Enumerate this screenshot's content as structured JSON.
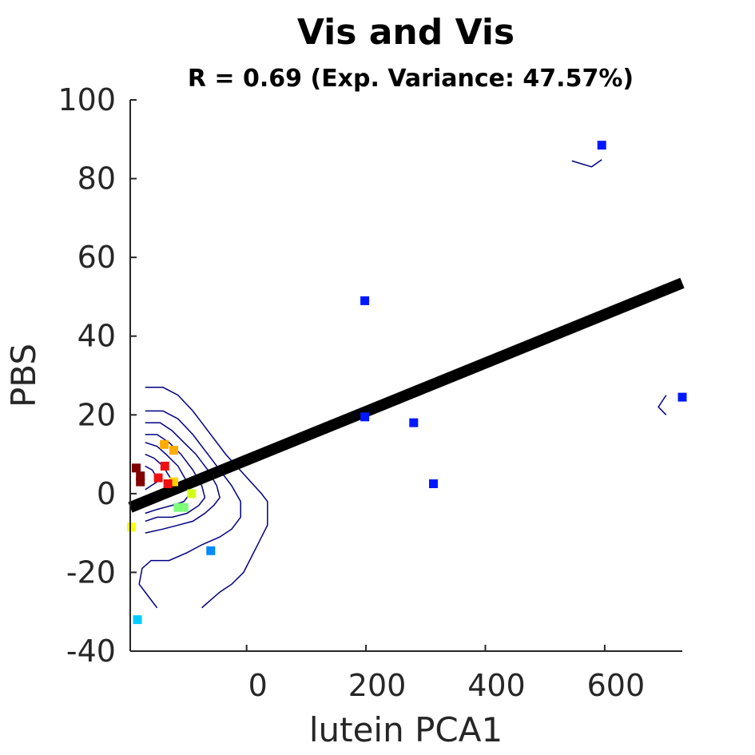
{
  "chart_data": {
    "type": "scatter",
    "title": "Vis and Vis",
    "subtitle": "R = 0.69 (Exp. Variance: 47.57%)",
    "xlabel": "lutein PCA1",
    "ylabel": "PBS",
    "xlim": [
      -195,
      730
    ],
    "ylim": [
      -40,
      100
    ],
    "xticks": [
      {
        "value": 0,
        "label": "0"
      },
      {
        "value": 200,
        "label": "200"
      },
      {
        "value": 400,
        "label": "400"
      },
      {
        "value": 600,
        "label": "600"
      }
    ],
    "yticks": [
      {
        "value": -40,
        "label": "-40"
      },
      {
        "value": -20,
        "label": "-20"
      },
      {
        "value": 0,
        "label": "0"
      },
      {
        "value": 20,
        "label": "20"
      },
      {
        "value": 40,
        "label": "40"
      },
      {
        "value": 60,
        "label": "60"
      },
      {
        "value": 80,
        "label": "80"
      },
      {
        "value": 100,
        "label": "100"
      }
    ],
    "fit_line": {
      "x": [
        -195,
        730
      ],
      "y": [
        -3.5,
        53.5
      ],
      "color": "#000000"
    },
    "points": [
      {
        "x": 595,
        "y": 88.5,
        "color": "#0018ff"
      },
      {
        "x": 198,
        "y": 49,
        "color": "#0018ff"
      },
      {
        "x": 730,
        "y": 24.5,
        "color": "#0018ff"
      },
      {
        "x": 198,
        "y": 19.5,
        "color": "#0018ff"
      },
      {
        "x": 280,
        "y": 18,
        "color": "#0018ff"
      },
      {
        "x": 313,
        "y": 2.5,
        "color": "#0018ff"
      },
      {
        "x": -60,
        "y": -14.5,
        "color": "#0088ff"
      },
      {
        "x": -183,
        "y": -32,
        "color": "#00ccff"
      },
      {
        "x": -115,
        "y": -3.5,
        "color": "#7dff7a"
      },
      {
        "x": -105,
        "y": -3.5,
        "color": "#7dff7a"
      },
      {
        "x": -92,
        "y": 0,
        "color": "#d4ff1a"
      },
      {
        "x": -193,
        "y": -8.5,
        "color": "#ffff00"
      },
      {
        "x": -122,
        "y": 3,
        "color": "#ffd200"
      },
      {
        "x": -138,
        "y": 12.5,
        "color": "#ffaa00"
      },
      {
        "x": -122,
        "y": 11,
        "color": "#ffaa00"
      },
      {
        "x": -137,
        "y": 7,
        "color": "#ee1111"
      },
      {
        "x": -148,
        "y": 4,
        "color": "#ee1111"
      },
      {
        "x": -132,
        "y": 2.5,
        "color": "#ee1111"
      },
      {
        "x": -185,
        "y": 6.5,
        "color": "#800000"
      },
      {
        "x": -178,
        "y": 4.5,
        "color": "#800000"
      },
      {
        "x": -178,
        "y": 3,
        "color": "#800000"
      }
    ],
    "contours": [
      [
        [
          -170,
          27
        ],
        [
          -140,
          27
        ],
        [
          -115,
          25
        ],
        [
          -90,
          21
        ],
        [
          -60,
          15
        ],
        [
          -35,
          10
        ],
        [
          -5,
          5
        ],
        [
          25,
          0
        ],
        [
          35,
          -2
        ],
        [
          35,
          -8
        ],
        [
          15,
          -14
        ],
        [
          -5,
          -20
        ],
        [
          -25,
          -23
        ],
        [
          -45,
          -25
        ],
        [
          -60,
          -27
        ],
        [
          -75,
          -29
        ]
      ],
      [
        [
          -170,
          21
        ],
        [
          -140,
          21
        ],
        [
          -115,
          19
        ],
        [
          -90,
          15
        ],
        [
          -70,
          11
        ],
        [
          -45,
          6
        ],
        [
          -25,
          2
        ],
        [
          -10,
          -2
        ],
        [
          -10,
          -6
        ],
        [
          -25,
          -9
        ],
        [
          -45,
          -11
        ],
        [
          -75,
          -13
        ],
        [
          -100,
          -15
        ],
        [
          -130,
          -17
        ],
        [
          -160,
          -17
        ],
        [
          -175,
          -19
        ],
        [
          -180,
          -23
        ],
        [
          -165,
          -26
        ],
        [
          -150,
          -29
        ]
      ],
      [
        [
          -170,
          18
        ],
        [
          -145,
          18
        ],
        [
          -125,
          16
        ],
        [
          -105,
          13
        ],
        [
          -85,
          10
        ],
        [
          -65,
          6
        ],
        [
          -50,
          2
        ],
        [
          -45,
          -1
        ],
        [
          -55,
          -3
        ],
        [
          -70,
          -5
        ],
        [
          -90,
          -7
        ],
        [
          -115,
          -8
        ],
        [
          -140,
          -9
        ],
        [
          -170,
          -10
        ]
      ],
      [
        [
          -170,
          15
        ],
        [
          -150,
          15
        ],
        [
          -130,
          13
        ],
        [
          -110,
          10
        ],
        [
          -90,
          6
        ],
        [
          -75,
          2
        ],
        [
          -70,
          -1
        ],
        [
          -80,
          -3
        ],
        [
          -100,
          -5
        ],
        [
          -125,
          -6
        ],
        [
          -150,
          -6
        ],
        [
          -170,
          -7
        ]
      ],
      [
        [
          -170,
          13
        ],
        [
          -150,
          12
        ],
        [
          -135,
          10
        ],
        [
          -115,
          7
        ],
        [
          -100,
          3
        ],
        [
          -95,
          0
        ],
        [
          -105,
          -2
        ],
        [
          -125,
          -3
        ],
        [
          -150,
          -4
        ],
        [
          -170,
          -5
        ]
      ],
      [
        [
          -170,
          10
        ],
        [
          -155,
          9
        ],
        [
          -140,
          7
        ],
        [
          -128,
          4
        ],
        [
          -125,
          2
        ],
        [
          -135,
          0
        ],
        [
          -155,
          -1
        ],
        [
          -170,
          -2
        ]
      ],
      [
        [
          -170,
          7
        ],
        [
          -158,
          6
        ],
        [
          -150,
          4
        ],
        [
          -150,
          3
        ],
        [
          -160,
          2
        ],
        [
          -170,
          1
        ]
      ],
      [
        [
          545,
          84.5
        ],
        [
          578,
          83
        ],
        [
          595,
          84.8
        ]
      ],
      [
        [
          703,
          25
        ],
        [
          690,
          22
        ],
        [
          703,
          20
        ]
      ]
    ]
  }
}
